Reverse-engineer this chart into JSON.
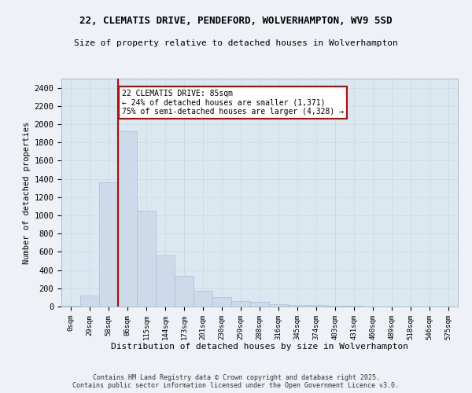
{
  "title1": "22, CLEMATIS DRIVE, PENDEFORD, WOLVERHAMPTON, WV9 5SD",
  "title2": "Size of property relative to detached houses in Wolverhampton",
  "xlabel": "Distribution of detached houses by size in Wolverhampton",
  "ylabel": "Number of detached properties",
  "bar_labels": [
    "0sqm",
    "29sqm",
    "58sqm",
    "86sqm",
    "115sqm",
    "144sqm",
    "173sqm",
    "201sqm",
    "230sqm",
    "259sqm",
    "288sqm",
    "316sqm",
    "345sqm",
    "374sqm",
    "403sqm",
    "431sqm",
    "460sqm",
    "489sqm",
    "518sqm",
    "546sqm",
    "575sqm"
  ],
  "bar_values": [
    10,
    125,
    1360,
    1920,
    1050,
    560,
    335,
    170,
    105,
    60,
    55,
    30,
    20,
    15,
    10,
    5,
    3,
    3,
    2,
    2,
    3
  ],
  "bar_color": "#ccdaea",
  "bar_edgecolor": "#a8c0d6",
  "vline_x": 2.5,
  "vline_color": "#cc0000",
  "annotation_title": "22 CLEMATIS DRIVE: 85sqm",
  "annotation_line2": "← 24% of detached houses are smaller (1,371)",
  "annotation_line3": "75% of semi-detached houses are larger (4,328) →",
  "annotation_box_facecolor": "#ffffff",
  "annotation_box_edgecolor": "#cc0000",
  "ylim": [
    0,
    2500
  ],
  "yticks": [
    0,
    200,
    400,
    600,
    800,
    1000,
    1200,
    1400,
    1600,
    1800,
    2000,
    2200,
    2400
  ],
  "grid_color": "#d0dce8",
  "plot_bg_color": "#dce8f0",
  "fig_bg_color": "#eef2f6",
  "footer1": "Contains HM Land Registry data © Crown copyright and database right 2025.",
  "footer2": "Contains public sector information licensed under the Open Government Licence v3.0."
}
